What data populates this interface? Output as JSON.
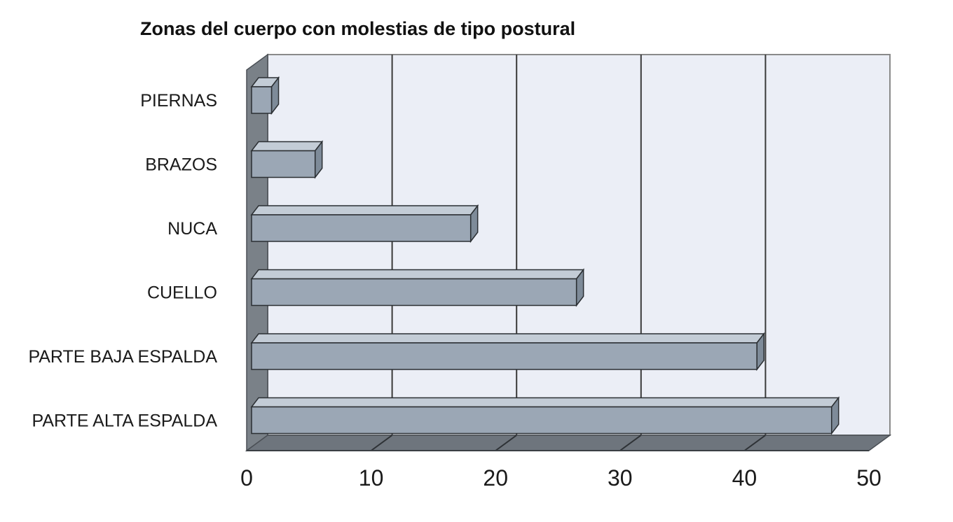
{
  "chart_data": {
    "type": "bar",
    "orientation": "horizontal",
    "style": "3d",
    "title": "Zonas del cuerpo con molestias de tipo postural",
    "categories": [
      "PIERNAS",
      "BRAZOS",
      "NUCA",
      "CUELLO",
      "PARTE BAJA ESPALDA",
      "PARTE ALTA ESPALDA"
    ],
    "values": [
      2,
      5.5,
      18,
      26.5,
      41,
      47
    ],
    "xlim": [
      0,
      50
    ],
    "xticks": [
      "0",
      "10",
      "20",
      "30",
      "40",
      "50"
    ],
    "grid": true,
    "legend": "none",
    "colors": {
      "bar_front": "#9ba7b5",
      "bar_top": "#c3ccd6",
      "bar_side": "#7e8b99",
      "plot_background": "#ebeef6",
      "wall": "#7a8188",
      "floor": "#6e757d",
      "grid": "#3a3a3a"
    }
  }
}
